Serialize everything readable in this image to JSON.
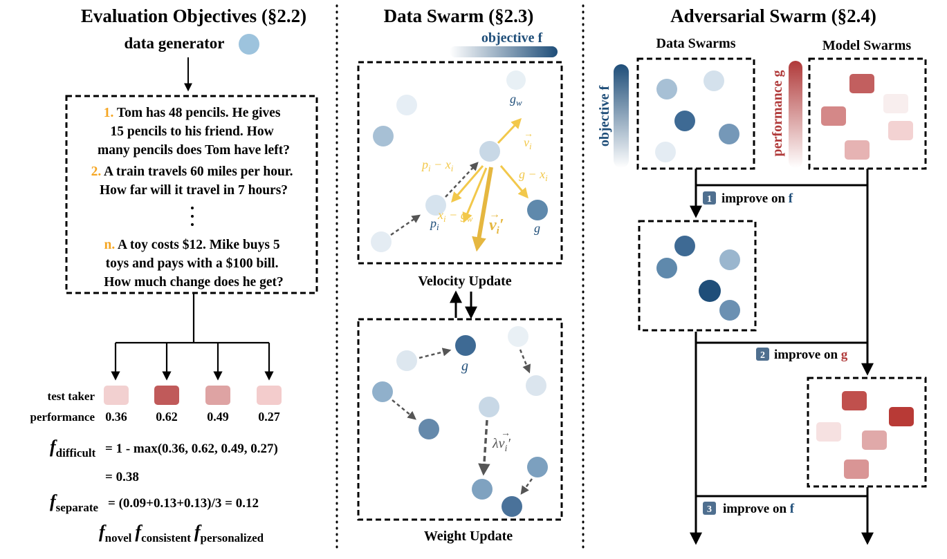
{
  "colors": {
    "orange": "#f5a623",
    "navy": "#1f4e79",
    "red": "#b03a3a",
    "yellow": "#f2c84b",
    "gray_arrow": "#555555",
    "black": "#000000"
  },
  "left": {
    "title": "Evaluation Objectives (§2.2)",
    "generator_label": "data generator",
    "questions": [
      {
        "num": "1.",
        "lines": [
          "Tom has 48 pencils. He gives",
          "15 pencils to his friend. How",
          "many pencils does Tom have left?"
        ]
      },
      {
        "num": "2.",
        "lines": [
          "A train travels 60 miles per hour.",
          "How far will it travel in 7 hours?"
        ]
      },
      {
        "num": "n.",
        "lines": [
          "A toy costs $12. Mike buys 5",
          "toys and pays with a $100 bill.",
          "How much change does he get?"
        ]
      }
    ],
    "test_taker_label": "test taker",
    "performance_label": "performance",
    "performance_values": [
      "0.36",
      "0.62",
      "0.49",
      "0.27"
    ],
    "f_difficult_sub": "difficult",
    "f_difficult_expr": "= 1 - max(0.36, 0.62, 0.49, 0.27)",
    "f_difficult_result": "= 0.38",
    "f_separate_sub": "separate",
    "f_separate_expr": "= (0.09+0.13+0.13)/3 = 0.12",
    "f_symbol": "f",
    "other_objectives": [
      "novel",
      "consistent",
      "personalized"
    ]
  },
  "middle": {
    "title": "Data Swarm (§2.3)",
    "objective_label": "objective f",
    "velocity_label": "Velocity Update",
    "weight_label": "Weight Update",
    "labels": {
      "g_w": "g",
      "g_w_sub": "w",
      "v_i": "v",
      "v_i_sub": "i",
      "v_i_prime": "v",
      "p_i_minus_x_i": "p",
      "g_minus_x_i": "g − x",
      "x_i_minus_g_w": "x",
      "p_i": "p",
      "g": "g",
      "lambda_v": "λv"
    }
  },
  "right": {
    "title": "Adversarial Swarm (§2.4)",
    "data_swarms_label": "Data Swarms",
    "model_swarms_label": "Model Swarms",
    "objective_f_label": "objective f",
    "performance_g_label": "performance g",
    "steps": [
      {
        "num": "1",
        "text": "improve on ",
        "target": "f"
      },
      {
        "num": "2",
        "text": "improve on ",
        "target": "g"
      },
      {
        "num": "3",
        "text": "improve on ",
        "target": "f"
      }
    ]
  }
}
